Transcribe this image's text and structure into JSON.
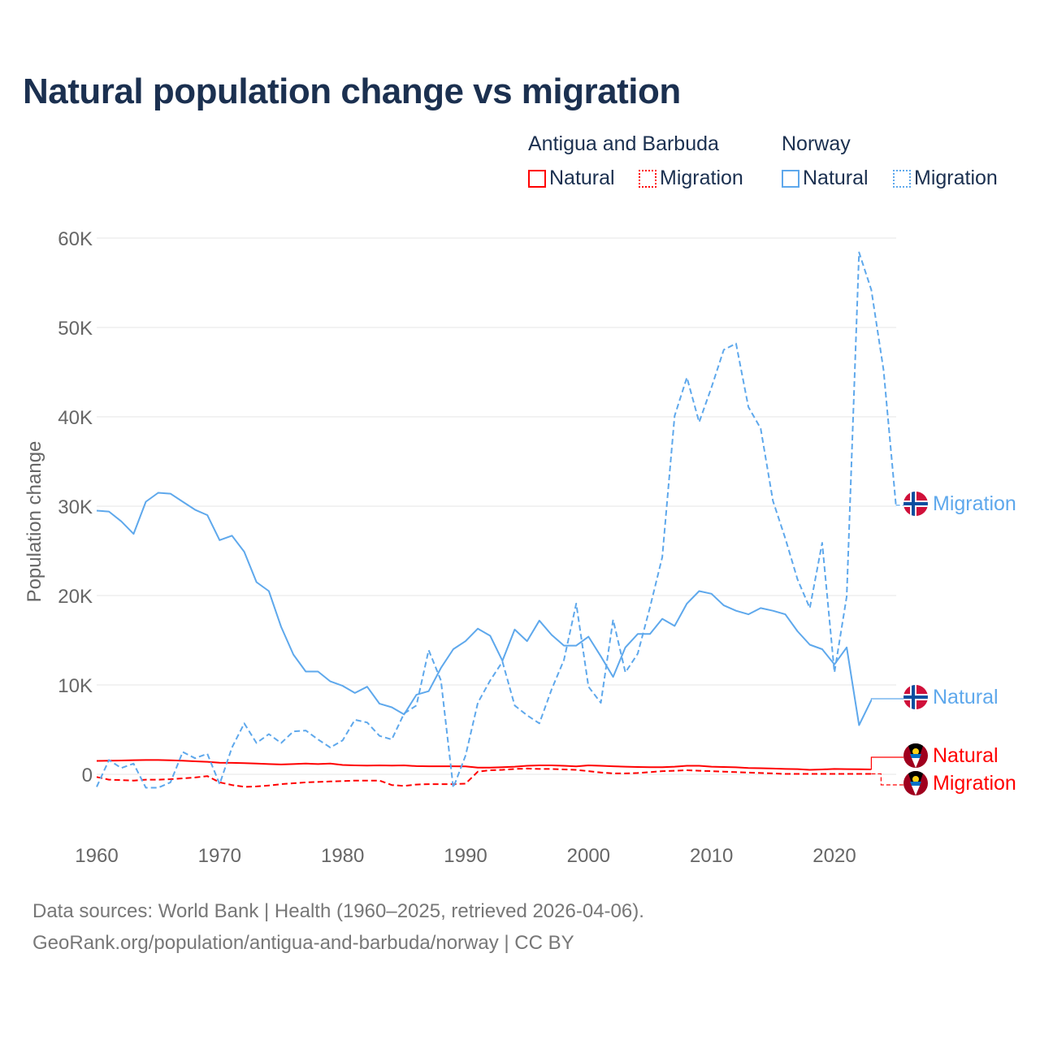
{
  "title": "Natural population change vs migration",
  "legend": {
    "groups": [
      {
        "name": "Antigua and Barbuda",
        "color": "#ff0000",
        "items": [
          "Natural",
          "Migration"
        ]
      },
      {
        "name": "Norway",
        "color": "#5ea8ec",
        "items": [
          "Natural",
          "Migration"
        ]
      }
    ]
  },
  "end_labels": {
    "norway_migration": "Migration",
    "norway_natural": "Natural",
    "antigua_natural": "Natural",
    "antigua_migration": "Migration"
  },
  "footer": {
    "line1": "Data sources: World Bank | Health (1960–2025, retrieved 2026-04-06).",
    "line2": "GeoRank.org/population/antigua-and-barbuda/norway | CC BY"
  },
  "chart_data": {
    "type": "line",
    "title": "Natural population change vs migration",
    "xlabel": "",
    "ylabel": "Population change",
    "xlim": [
      1960,
      2025
    ],
    "ylim": [
      -5000,
      60000
    ],
    "x_ticks": [
      "1960",
      "1970",
      "1980",
      "1990",
      "2000",
      "2010",
      "2020"
    ],
    "y_ticks": [
      "0",
      "10K",
      "20K",
      "30K",
      "40K",
      "50K",
      "60K"
    ],
    "y_tick_values": [
      0,
      10000,
      20000,
      30000,
      40000,
      50000,
      60000
    ],
    "grid": true,
    "units": "thousands",
    "series": [
      {
        "name": "Norway Natural",
        "country": "Norway",
        "kind": "Natural",
        "color": "#5ea8ec",
        "dash": false,
        "start_year": 1960,
        "values": [
          29.5,
          29.4,
          28.3,
          26.9,
          30.5,
          31.5,
          31.4,
          30.5,
          29.6,
          29.0,
          26.2,
          26.7,
          24.9,
          21.5,
          20.5,
          16.5,
          13.4,
          11.5,
          11.5,
          10.4,
          9.9,
          9.1,
          9.8,
          7.9,
          7.5,
          6.7,
          8.9,
          9.3,
          11.9,
          14.0,
          14.9,
          16.3,
          15.5,
          12.7,
          16.2,
          14.9,
          17.2,
          15.6,
          14.4,
          14.4,
          15.4,
          13.2,
          10.9,
          14.2,
          15.7,
          15.7,
          17.4,
          16.6,
          19.1,
          20.5,
          20.2,
          18.9,
          18.3,
          17.9,
          18.6,
          18.3,
          17.9,
          16.0,
          14.5,
          14.0,
          12.3,
          14.2,
          5.5,
          8.3
        ]
      },
      {
        "name": "Norway Migration",
        "country": "Norway",
        "kind": "Migration",
        "color": "#5ea8ec",
        "dash": true,
        "start_year": 1960,
        "values": [
          -1.4,
          1.6,
          0.7,
          1.2,
          -1.5,
          -1.5,
          -0.9,
          2.5,
          1.8,
          2.3,
          -1.1,
          3.0,
          5.7,
          3.5,
          4.5,
          3.5,
          4.8,
          4.9,
          3.9,
          3.0,
          3.8,
          6.1,
          5.8,
          4.3,
          3.9,
          6.8,
          7.7,
          13.9,
          10.5,
          -1.5,
          2.1,
          8.0,
          10.5,
          12.6,
          7.7,
          6.6,
          5.7,
          9.5,
          12.8,
          19.1,
          9.8,
          8.0,
          17.3,
          11.4,
          13.5,
          18.7,
          24.3,
          40.1,
          44.4,
          39.4,
          43.3,
          47.5,
          48.2,
          41.1,
          38.7,
          30.6,
          26.4,
          21.8,
          18.6,
          25.9,
          11.4,
          19.9,
          58.4,
          54.2,
          45.2,
          30.1
        ]
      },
      {
        "name": "Antigua and Barbuda Natural",
        "country": "Antigua and Barbuda",
        "kind": "Natural",
        "color": "#ff0000",
        "dash": false,
        "start_year": 1960,
        "values": [
          1.5,
          1.52,
          1.55,
          1.58,
          1.6,
          1.6,
          1.57,
          1.52,
          1.45,
          1.4,
          1.3,
          1.28,
          1.25,
          1.2,
          1.15,
          1.1,
          1.15,
          1.2,
          1.15,
          1.2,
          1.05,
          1.0,
          0.98,
          1.0,
          0.97,
          1.0,
          0.92,
          0.9,
          0.9,
          0.9,
          0.88,
          0.75,
          0.75,
          0.8,
          0.85,
          0.95,
          1.0,
          1.0,
          0.95,
          0.88,
          1.0,
          0.95,
          0.9,
          0.85,
          0.82,
          0.8,
          0.8,
          0.85,
          0.95,
          0.95,
          0.85,
          0.82,
          0.78,
          0.7,
          0.68,
          0.65,
          0.6,
          0.58,
          0.5,
          0.55,
          0.6,
          0.58,
          0.57,
          0.55
        ]
      },
      {
        "name": "Antigua and Barbuda Migration",
        "country": "Antigua and Barbuda",
        "kind": "Migration",
        "color": "#ff0000",
        "dash": true,
        "start_year": 1960,
        "values": [
          -0.3,
          -0.6,
          -0.65,
          -0.7,
          -0.6,
          -0.6,
          -0.55,
          -0.45,
          -0.35,
          -0.2,
          -0.9,
          -1.2,
          -1.4,
          -1.35,
          -1.25,
          -1.1,
          -1.0,
          -0.9,
          -0.85,
          -0.8,
          -0.75,
          -0.7,
          -0.7,
          -0.7,
          -1.2,
          -1.3,
          -1.15,
          -1.1,
          -1.1,
          -1.1,
          -1.05,
          0.3,
          0.45,
          0.5,
          0.6,
          0.65,
          0.6,
          0.6,
          0.55,
          0.5,
          0.35,
          0.2,
          0.1,
          0.1,
          0.15,
          0.25,
          0.35,
          0.4,
          0.45,
          0.4,
          0.35,
          0.3,
          0.25,
          0.2,
          0.15,
          0.1,
          0.05,
          0.05,
          0.05,
          0.05,
          0.05,
          0.05,
          0.05,
          0.05
        ]
      }
    ]
  }
}
